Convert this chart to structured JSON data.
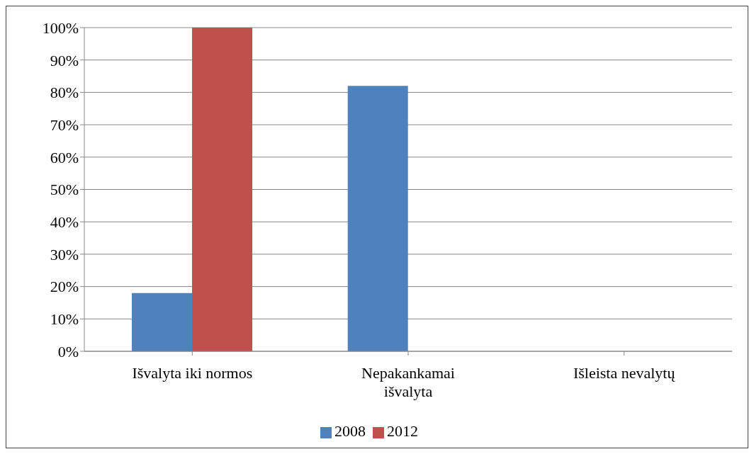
{
  "chart_data": {
    "type": "bar",
    "categories": [
      "Išvalyta iki normos",
      "Nepakankamai išvalyta",
      "Išleista nevalytų"
    ],
    "series": [
      {
        "name": "2008",
        "color": "#4f81bd",
        "values": [
          18,
          82,
          0
        ]
      },
      {
        "name": "2012",
        "color": "#c0504d",
        "values": [
          100,
          0,
          0
        ]
      }
    ],
    "ylim": [
      0,
      100
    ],
    "yticks": [
      {
        "value": 0,
        "label": "0%"
      },
      {
        "value": 10,
        "label": "10%"
      },
      {
        "value": 20,
        "label": "20%"
      },
      {
        "value": 30,
        "label": "30%"
      },
      {
        "value": 40,
        "label": "40%"
      },
      {
        "value": 50,
        "label": "50%"
      },
      {
        "value": 60,
        "label": "60%"
      },
      {
        "value": 70,
        "label": "70%"
      },
      {
        "value": 80,
        "label": "80%"
      },
      {
        "value": 90,
        "label": "90%"
      },
      {
        "value": 100,
        "label": "100%"
      }
    ],
    "grid": "y",
    "legend": "bottom"
  }
}
